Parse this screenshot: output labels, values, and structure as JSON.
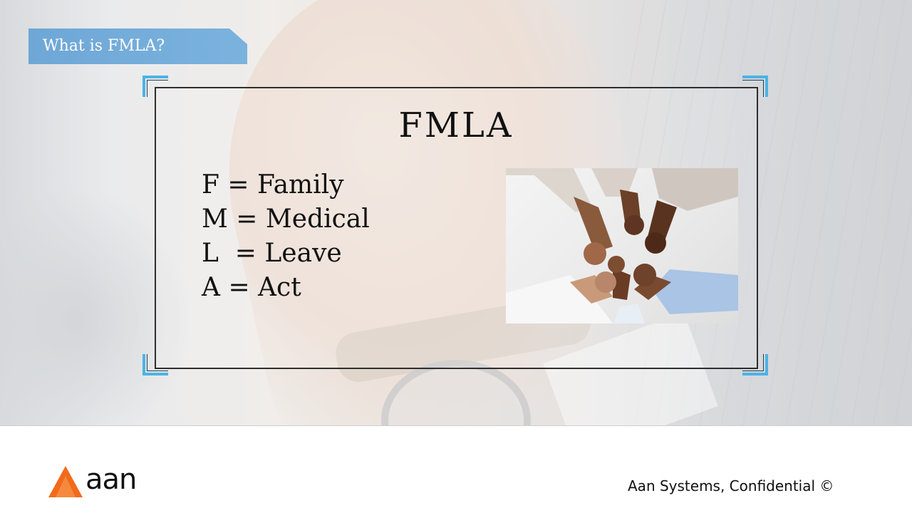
{
  "slide": {
    "section_tag": "What is FMLA?",
    "title": "FMLA",
    "acronym_lines": [
      "F = Family",
      "M = Medical",
      "L  = Leave",
      "A = Act"
    ]
  },
  "footer": {
    "logo_text": "aan",
    "note": "Aan Systems, Confidential ©"
  },
  "colors": {
    "tag_blue": "#6ea7d6",
    "corner_accent": "#4bb3e5",
    "logo_orange": "#f26a1b"
  },
  "icons": {
    "logo_mark": "orange-triangle-logo"
  }
}
